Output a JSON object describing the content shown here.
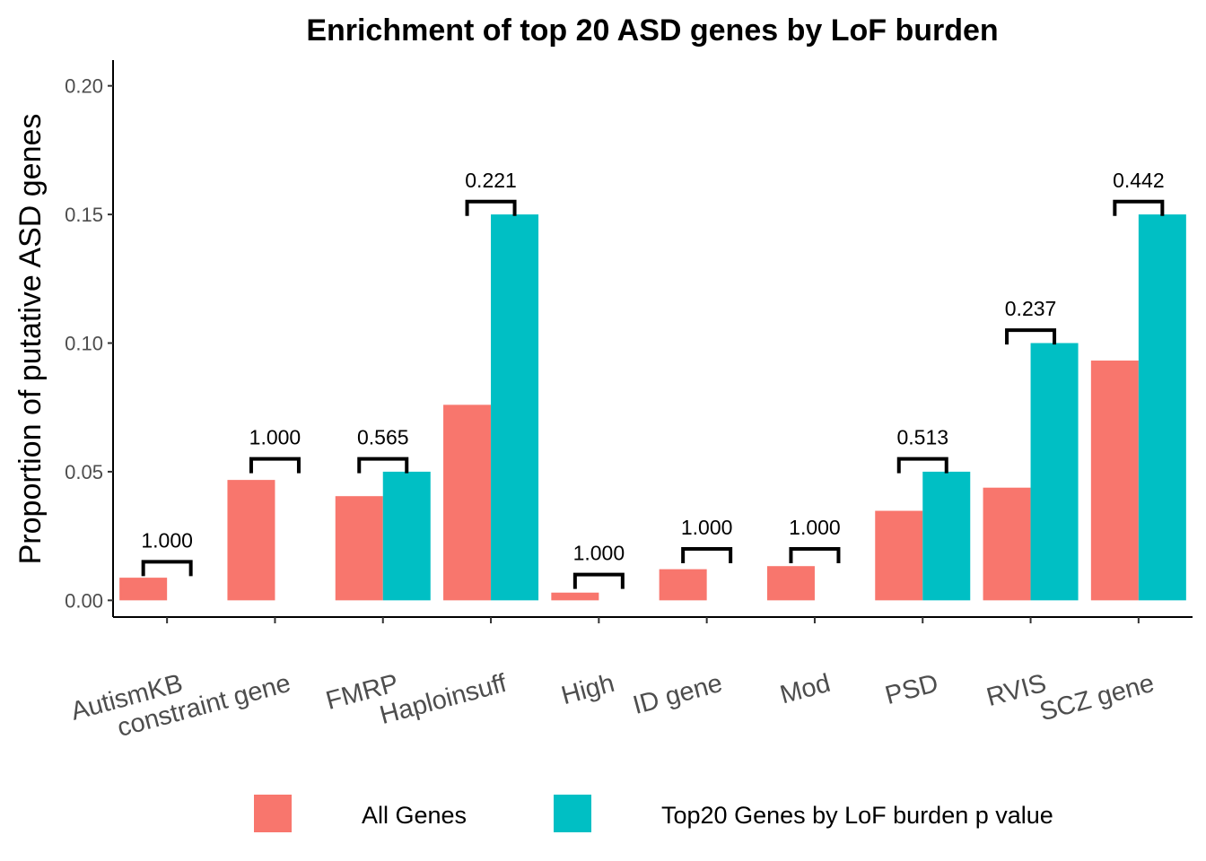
{
  "chart_data": {
    "type": "bar",
    "title": "Enrichment of top 20 ASD genes by LoF burden",
    "xlabel": "",
    "ylabel": "Proportion of putative ASD genes",
    "ylim": [
      -0.0065,
      0.21
    ],
    "yticks": [
      0.0,
      0.05,
      0.1,
      0.15,
      0.2
    ],
    "ytick_labels": [
      "0.00",
      "0.05",
      "0.10",
      "0.15",
      "0.20"
    ],
    "categories": [
      "AutismKB",
      "constraint gene",
      "FMRP",
      "Haploinsuff",
      "High",
      "ID gene",
      "Mod",
      "PSD",
      "RVIS",
      "SCZ gene"
    ],
    "series": [
      {
        "name": "All Genes",
        "color": "#F8766D",
        "values": [
          0.0088,
          0.0468,
          0.0405,
          0.076,
          0.003,
          0.0121,
          0.0133,
          0.0348,
          0.0438,
          0.0932
        ]
      },
      {
        "name": "Top20 Genes by LoF burden p value",
        "color": "#00BFC4",
        "values": [
          0,
          0,
          0.05,
          0.15,
          0,
          0,
          0,
          0.05,
          0.1,
          0.15
        ]
      }
    ],
    "annotations": [
      {
        "category": "AutismKB",
        "label": "1.000",
        "y": 0.015
      },
      {
        "category": "constraint gene",
        "label": "1.000",
        "y": 0.055
      },
      {
        "category": "FMRP",
        "label": "0.565",
        "y": 0.055
      },
      {
        "category": "Haploinsuff",
        "label": "0.221",
        "y": 0.155
      },
      {
        "category": "High",
        "label": "1.000",
        "y": 0.01
      },
      {
        "category": "ID gene",
        "label": "1.000",
        "y": 0.02
      },
      {
        "category": "Mod",
        "label": "1.000",
        "y": 0.02
      },
      {
        "category": "PSD",
        "label": "0.513",
        "y": 0.055
      },
      {
        "category": "RVIS",
        "label": "0.237",
        "y": 0.105
      },
      {
        "category": "SCZ gene",
        "label": "0.442",
        "y": 0.155
      }
    ],
    "grid": false,
    "legend_position": "bottom"
  }
}
